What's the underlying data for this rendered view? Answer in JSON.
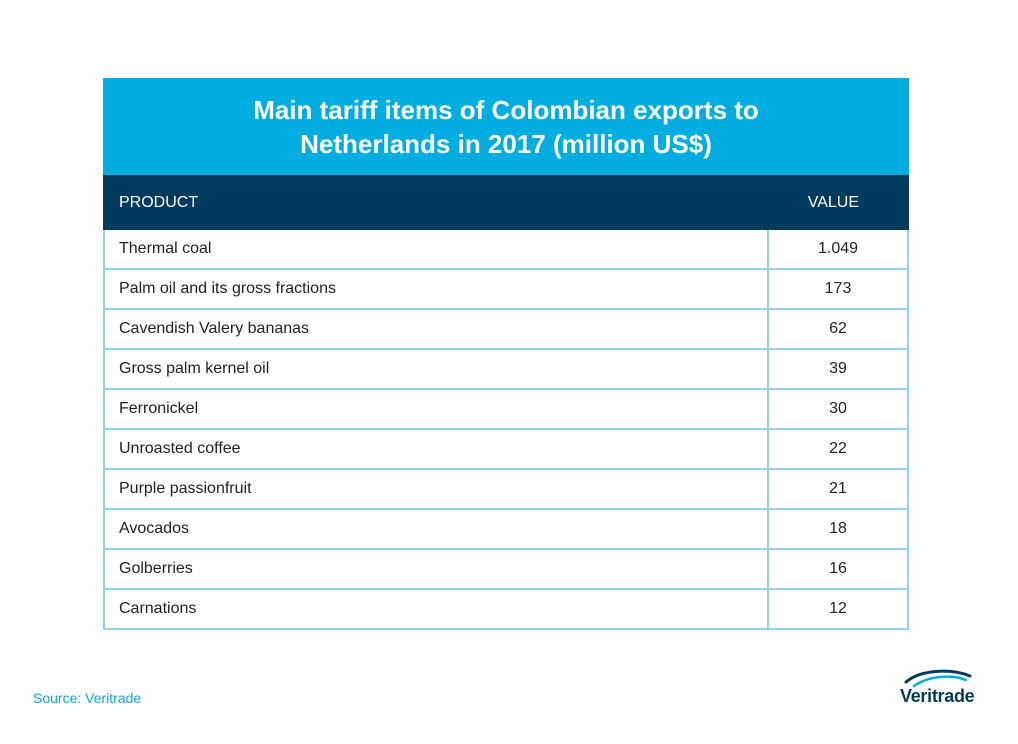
{
  "chart_data": {
    "type": "table",
    "title": "Main tariff items of Colombian exports to Netherlands in 2017 (million US$)",
    "columns": [
      "PRODUCT",
      "VALUE"
    ],
    "rows": [
      {
        "product": "Thermal coal",
        "value": "1.049"
      },
      {
        "product": "Palm oil and its gross fractions",
        "value": "173"
      },
      {
        "product": "Cavendish Valery bananas",
        "value": "62"
      },
      {
        "product": "Gross palm kernel oil",
        "value": "39"
      },
      {
        "product": "Ferronickel",
        "value": "30"
      },
      {
        "product": "Unroasted coffee",
        "value": "22"
      },
      {
        "product": "Purple passionfruit",
        "value": "21"
      },
      {
        "product": "Avocados",
        "value": "18"
      },
      {
        "product": "Golberries",
        "value": "16"
      },
      {
        "product": "Carnations",
        "value": "12"
      }
    ]
  },
  "footer": {
    "source": "Source: Veritrade",
    "logo_text": "Veritrade"
  },
  "colors": {
    "title_bg": "#00ade0",
    "header_bg": "#003a5c",
    "grid": "#8fd3ee",
    "source_text": "#00ade0"
  }
}
